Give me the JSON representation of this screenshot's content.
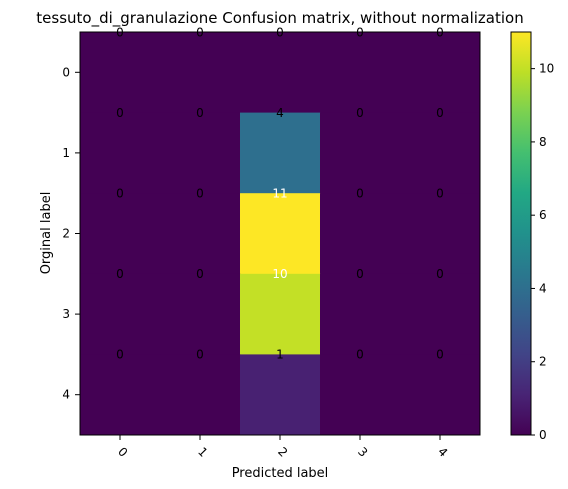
{
  "chart_data": {
    "type": "heatmap",
    "title": "tessuto_di_granulazione Confusion matrix, without normalization",
    "xlabel": "Predicted label",
    "ylabel": "Orginal label",
    "x_categories": [
      "0",
      "1",
      "2",
      "3",
      "4"
    ],
    "y_categories": [
      "0",
      "1",
      "2",
      "3",
      "4"
    ],
    "matrix": [
      [
        0,
        0,
        0,
        0,
        0
      ],
      [
        0,
        0,
        4,
        0,
        0
      ],
      [
        0,
        0,
        11,
        0,
        0
      ],
      [
        0,
        0,
        10,
        0,
        0
      ],
      [
        0,
        0,
        1,
        0,
        0
      ]
    ],
    "colormap": "viridis",
    "colorbar": {
      "min": 0,
      "max": 11,
      "ticks": [
        "0",
        "2",
        "4",
        "6",
        "8",
        "10"
      ]
    },
    "grid": false
  }
}
